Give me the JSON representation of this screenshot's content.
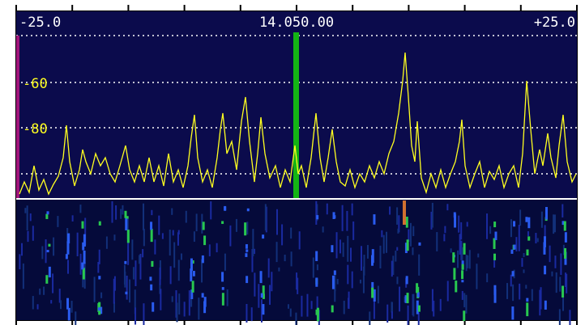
{
  "scale": {
    "left": "-25.0",
    "center": "14.050.00",
    "right": "+25.0"
  },
  "levels": [
    "-60",
    "-80"
  ]
}
